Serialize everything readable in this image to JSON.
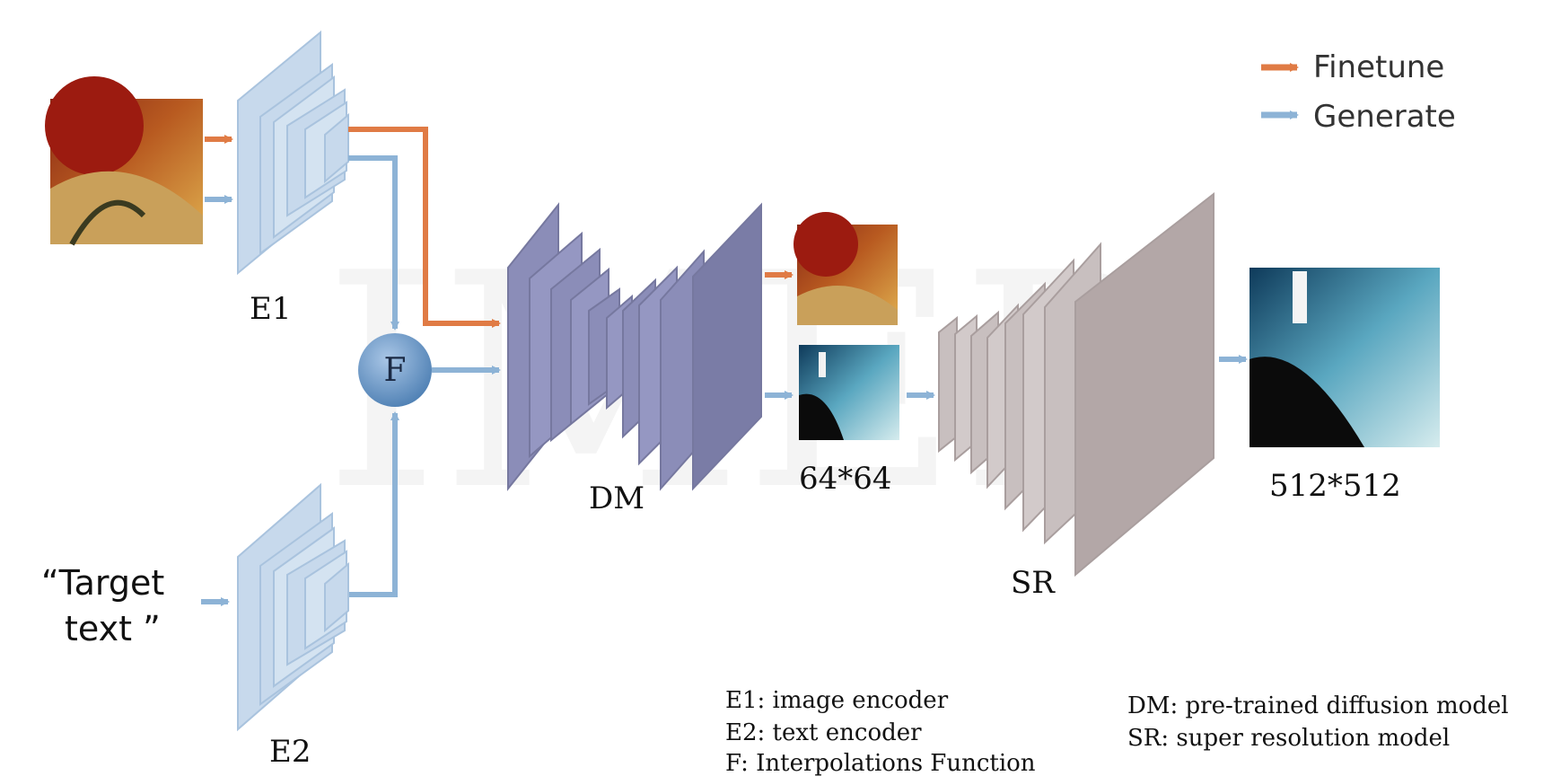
{
  "legend": {
    "finetune_label": "Finetune",
    "generate_label": "Generate"
  },
  "colors": {
    "finetune": "#e07b45",
    "generate": "#8db3d6",
    "encoder": "#c7d9ec",
    "encoder_dark": "#a9c3de",
    "dm": "#8b8db8",
    "dm_dark": "#76789f",
    "sr": "#c8bfbf",
    "sr_dark": "#a99e9e",
    "fusion": "#6b96c4"
  },
  "blocks": {
    "e1_label": "E1",
    "e2_label": "E2",
    "dm_label": "DM",
    "sr_label": "SR",
    "fusion_label": "F"
  },
  "inputs": {
    "text_line1": "“Target",
    "text_line2": "text  ”"
  },
  "outputs": {
    "small_size": "64*64",
    "large_size": "512*512"
  },
  "notes": {
    "e1": "E1:  image encoder",
    "e2": "E2:  text encoder",
    "f": "F: Interpolations Function",
    "dm": "DM: pre-trained diffusion model",
    "sr": "SR: super resolution model"
  },
  "watermark": "IMED"
}
